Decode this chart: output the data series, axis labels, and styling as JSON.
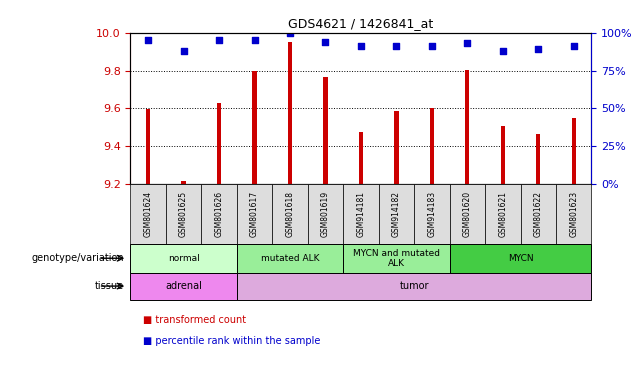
{
  "title": "GDS4621 / 1426841_at",
  "samples": [
    "GSM801624",
    "GSM801625",
    "GSM801626",
    "GSM801617",
    "GSM801618",
    "GSM801619",
    "GSM914181",
    "GSM914182",
    "GSM914183",
    "GSM801620",
    "GSM801621",
    "GSM801622",
    "GSM801623"
  ],
  "bar_values": [
    9.595,
    9.215,
    9.63,
    9.8,
    9.95,
    9.765,
    9.475,
    9.585,
    9.6,
    9.805,
    9.505,
    9.465,
    9.55
  ],
  "dot_percentiles": [
    95,
    88,
    95,
    95,
    100,
    94,
    91,
    91,
    91,
    93,
    88,
    89,
    91
  ],
  "bar_color": "#cc0000",
  "dot_color": "#0000cc",
  "ylim_left": [
    9.2,
    10.0
  ],
  "ylim_right": [
    0,
    100
  ],
  "yticks_left": [
    9.2,
    9.4,
    9.6,
    9.8,
    10.0
  ],
  "yticks_right": [
    0,
    25,
    50,
    75,
    100
  ],
  "grid_lines": [
    9.4,
    9.6,
    9.8
  ],
  "genotype_groups": [
    {
      "label": "normal",
      "start": 0,
      "end": 3,
      "color": "#ccffcc"
    },
    {
      "label": "mutated ALK",
      "start": 3,
      "end": 6,
      "color": "#99ee99"
    },
    {
      "label": "MYCN and mutated\nALK",
      "start": 6,
      "end": 9,
      "color": "#99ee99"
    },
    {
      "label": "MYCN",
      "start": 9,
      "end": 13,
      "color": "#44cc44"
    }
  ],
  "tissue_groups": [
    {
      "label": "adrenal",
      "start": 0,
      "end": 3,
      "color": "#ee88ee"
    },
    {
      "label": "tumor",
      "start": 3,
      "end": 13,
      "color": "#ddaadd"
    }
  ],
  "legend_items": [
    {
      "label": "transformed count",
      "color": "#cc0000"
    },
    {
      "label": "percentile rank within the sample",
      "color": "#0000cc"
    }
  ],
  "left_color": "#cc0000",
  "right_color": "#0000cc",
  "bar_bottom": 9.2,
  "bar_width": 0.12,
  "genotype_label": "genotype/variation",
  "tissue_label": "tissue",
  "xtick_bg": "#dddddd"
}
